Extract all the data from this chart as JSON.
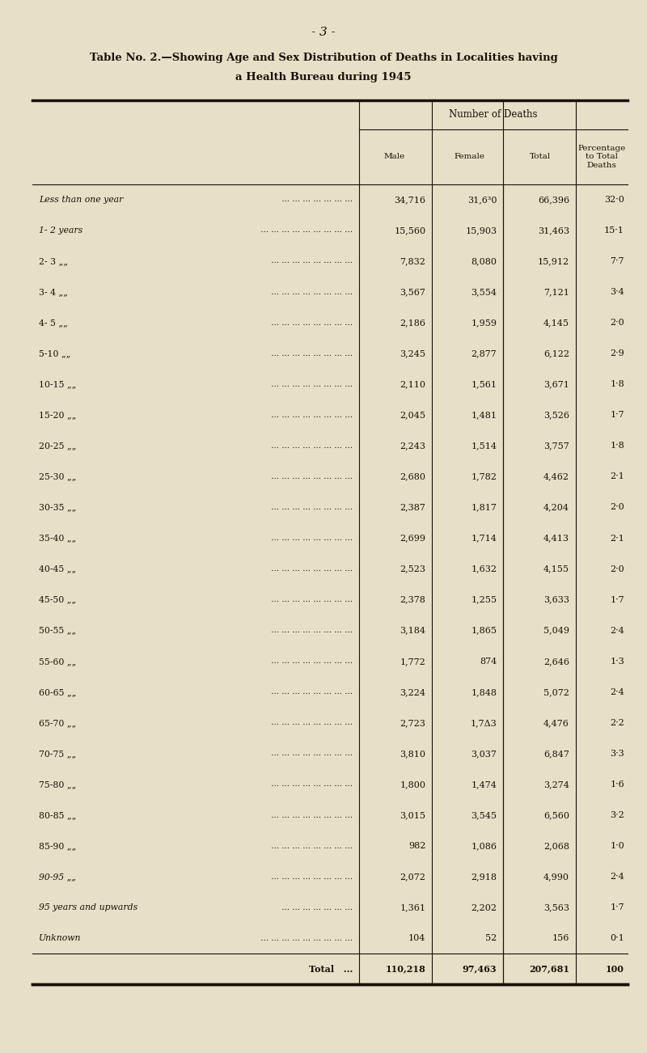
{
  "page_number": "- 3 -",
  "title_line1": "Table No. 2.—Showing Age and Sex Distribution of Deaths in Localities having",
  "title_line2": "a Health Bureau during 1945",
  "col_headers": [
    "Male",
    "Female",
    "Total",
    "Percentage\nto Total\nDeaths"
  ],
  "group_header": "Number of Deaths",
  "rows": [
    {
      "label": "Less than one year",
      "dots": true,
      "male": "34,716",
      "female": "31,6³0",
      "total": "66,396",
      "pct": "32·0"
    },
    {
      "label": "1- 2 years",
      "dots": true,
      "male": "15,560",
      "female": "15,903",
      "total": "31,463",
      "pct": "15·1"
    },
    {
      "label": "2- 3 „„",
      "dots": true,
      "male": "7,832",
      "female": "8,080",
      "total": "15,912",
      "pct": "7·7"
    },
    {
      "label": "3- 4 „„",
      "dots": true,
      "male": "3,567",
      "female": "3,554",
      "total": "7,121",
      "pct": "3·4"
    },
    {
      "label": "4- 5 „„",
      "dots": true,
      "male": "2,186",
      "female": "1,959",
      "total": "4,145",
      "pct": "2·0"
    },
    {
      "label": "5-10 „„",
      "dots": true,
      "male": "3,245",
      "female": "2,877",
      "total": "6,122",
      "pct": "2·9"
    },
    {
      "label": "10-15 „„",
      "dots": true,
      "male": "2,110",
      "female": "1,561",
      "total": "3,671",
      "pct": "1·8"
    },
    {
      "label": "15-20 „„",
      "dots": true,
      "male": "2,045",
      "female": "1,481",
      "total": "3,526",
      "pct": "1·7"
    },
    {
      "label": "20-25 „„",
      "dots": true,
      "male": "2,243",
      "female": "1,514",
      "total": "3,757",
      "pct": "1·8"
    },
    {
      "label": "25-30 „„",
      "dots": true,
      "male": "2,680",
      "female": "1,782",
      "total": "4,462",
      "pct": "2·1"
    },
    {
      "label": "30-35 „„",
      "dots": true,
      "male": "2,387",
      "female": "1,817",
      "total": "4,204",
      "pct": "2·0"
    },
    {
      "label": "35-40 „„",
      "dots": true,
      "male": "2,699",
      "female": "1,714",
      "total": "4,413",
      "pct": "2·1"
    },
    {
      "label": "40-45 „„",
      "dots": true,
      "male": "2,523",
      "female": "1,632",
      "total": "4,155",
      "pct": "2·0"
    },
    {
      "label": "45-50 „„",
      "dots": true,
      "male": "2,378",
      "female": "1,255",
      "total": "3,633",
      "pct": "1·7"
    },
    {
      "label": "50-55 „„",
      "dots": true,
      "male": "3,184",
      "female": "1,865",
      "total": "5,049",
      "pct": "2·4"
    },
    {
      "label": "55-60 „„",
      "dots": true,
      "male": "1,772",
      "female": "874",
      "total": "2,646",
      "pct": "1·3"
    },
    {
      "label": "60-65 „„",
      "dots": true,
      "male": "3,224",
      "female": "1,848",
      "total": "5,072",
      "pct": "2·4"
    },
    {
      "label": "65-70 „„",
      "dots": true,
      "male": "2,723",
      "female": "1,7Δ3",
      "total": "4,476",
      "pct": "2·2"
    },
    {
      "label": "70-75 „„",
      "dots": true,
      "male": "3,810",
      "female": "3,037",
      "total": "6,847",
      "pct": "3·3"
    },
    {
      "label": "75-80 „„",
      "dots": true,
      "male": "1,800",
      "female": "1,474",
      "total": "3,274",
      "pct": "1·6"
    },
    {
      "label": "80-85 „„",
      "dots": true,
      "male": "3,015",
      "female": "3,545",
      "total": "6,560",
      "pct": "3·2"
    },
    {
      "label": "85-90 „„",
      "dots": true,
      "male": "982",
      "female": "1,086",
      "total": "2,068",
      "pct": "1·0"
    },
    {
      "label": "90-95 „„",
      "dots": true,
      "male": "2,072",
      "female": "2,918",
      "total": "4,990",
      "pct": "2·4"
    },
    {
      "label": "95 years and upwards",
      "dots": true,
      "male": "1,361",
      "female": "2,202",
      "total": "3,563",
      "pct": "1·7"
    },
    {
      "label": "Unknown",
      "dots": true,
      "male": "104",
      "female": "52",
      "total": "156",
      "pct": "0·1"
    },
    {
      "label": "Total",
      "dots": true,
      "male": "110,218",
      "female": "97,463",
      "total": "207,681",
      "pct": "100",
      "is_total": true
    }
  ],
  "bg_color": "#e8dfc8",
  "text_color": "#1a1008",
  "line_color": "#1a1008"
}
